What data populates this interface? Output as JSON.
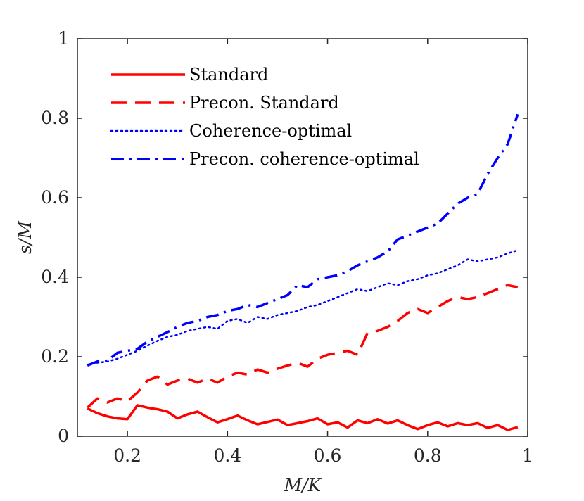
{
  "chart_data": {
    "type": "line",
    "xlabel": "M/K",
    "ylabel": "s/M",
    "xlim": [
      0.1,
      1.0
    ],
    "ylim": [
      0,
      1
    ],
    "xticks": [
      0.2,
      0.4,
      0.6,
      0.8,
      1
    ],
    "xtick_labels": [
      "0.2",
      "0.4",
      "0.6",
      "0.8",
      "1"
    ],
    "yticks": [
      0,
      0.2,
      0.4,
      0.6,
      0.8,
      1
    ],
    "ytick_labels": [
      "0",
      "0.2",
      "0.4",
      "0.6",
      "0.8",
      "1"
    ],
    "grid": false,
    "legend_position": "top-left",
    "x": [
      0.12,
      0.14,
      0.16,
      0.18,
      0.2,
      0.22,
      0.24,
      0.26,
      0.28,
      0.3,
      0.32,
      0.34,
      0.36,
      0.38,
      0.4,
      0.42,
      0.44,
      0.46,
      0.48,
      0.5,
      0.52,
      0.54,
      0.56,
      0.58,
      0.6,
      0.62,
      0.64,
      0.66,
      0.68,
      0.7,
      0.72,
      0.74,
      0.76,
      0.78,
      0.8,
      0.82,
      0.84,
      0.86,
      0.88,
      0.9,
      0.92,
      0.94,
      0.96,
      0.98
    ],
    "series": [
      {
        "name": "Standard",
        "color": "#ff0000",
        "style": "solid",
        "values": [
          0.07,
          0.058,
          0.05,
          0.045,
          0.043,
          0.078,
          0.072,
          0.068,
          0.062,
          0.045,
          0.055,
          0.062,
          0.048,
          0.035,
          0.043,
          0.052,
          0.04,
          0.03,
          0.036,
          0.042,
          0.028,
          0.033,
          0.038,
          0.045,
          0.03,
          0.035,
          0.022,
          0.04,
          0.033,
          0.043,
          0.032,
          0.04,
          0.028,
          0.018,
          0.028,
          0.035,
          0.025,
          0.033,
          0.028,
          0.033,
          0.021,
          0.028,
          0.016,
          0.023
        ]
      },
      {
        "name": "Precon. Standard",
        "color": "#ff0000",
        "style": "dashed",
        "values": [
          0.072,
          0.095,
          0.085,
          0.095,
          0.088,
          0.11,
          0.14,
          0.15,
          0.13,
          0.14,
          0.145,
          0.135,
          0.145,
          0.135,
          0.15,
          0.16,
          0.155,
          0.168,
          0.16,
          0.17,
          0.178,
          0.185,
          0.175,
          0.195,
          0.205,
          0.21,
          0.215,
          0.205,
          0.26,
          0.265,
          0.275,
          0.29,
          0.31,
          0.32,
          0.31,
          0.325,
          0.34,
          0.35,
          0.345,
          0.35,
          0.36,
          0.37,
          0.38,
          0.375
        ]
      },
      {
        "name": "Coherence-optimal",
        "color": "#0000ff",
        "style": "dotted",
        "values": [
          0.18,
          0.185,
          0.188,
          0.195,
          0.205,
          0.215,
          0.228,
          0.24,
          0.25,
          0.255,
          0.265,
          0.27,
          0.275,
          0.27,
          0.29,
          0.295,
          0.285,
          0.3,
          0.295,
          0.305,
          0.31,
          0.315,
          0.325,
          0.33,
          0.34,
          0.35,
          0.36,
          0.37,
          0.365,
          0.375,
          0.385,
          0.38,
          0.39,
          0.395,
          0.405,
          0.41,
          0.42,
          0.43,
          0.445,
          0.44,
          0.445,
          0.45,
          0.46,
          0.468
        ]
      },
      {
        "name": "Precon. coherence-optimal",
        "color": "#0000ff",
        "style": "dashdot",
        "values": [
          0.178,
          0.188,
          0.19,
          0.21,
          0.215,
          0.22,
          0.238,
          0.25,
          0.262,
          0.275,
          0.285,
          0.29,
          0.3,
          0.305,
          0.315,
          0.32,
          0.33,
          0.325,
          0.335,
          0.345,
          0.355,
          0.38,
          0.375,
          0.395,
          0.4,
          0.405,
          0.415,
          0.43,
          0.44,
          0.45,
          0.465,
          0.495,
          0.505,
          0.515,
          0.525,
          0.535,
          0.56,
          0.585,
          0.6,
          0.61,
          0.66,
          0.7,
          0.735,
          0.81
        ]
      }
    ]
  }
}
